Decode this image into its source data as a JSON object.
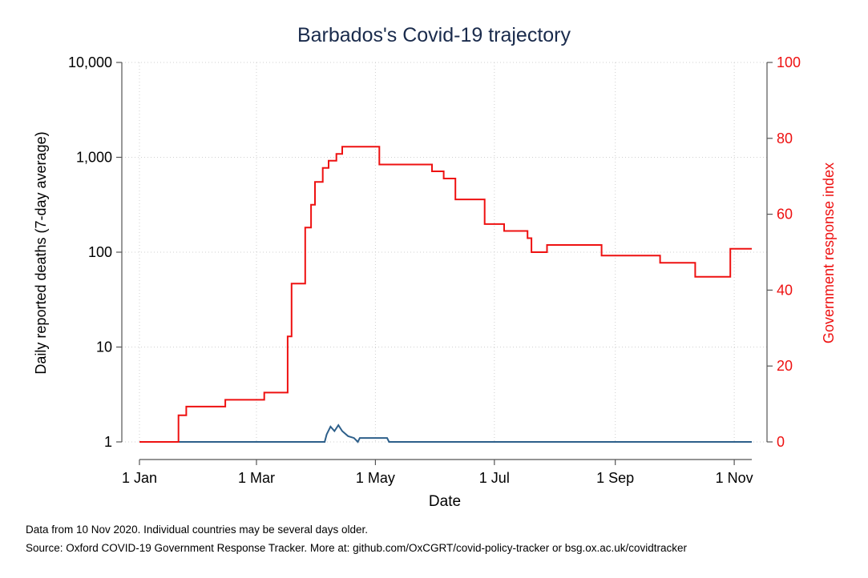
{
  "chart_data": {
    "type": "line",
    "title": "Barbados's Covid-19 trajectory",
    "xlabel": "Date",
    "ylabel_left": "Daily reported deaths (7-day average)",
    "ylabel_right": "Government response index",
    "x_ticks": [
      "1 Jan",
      "1 Mar",
      "1 May",
      "1 Jul",
      "1 Sep",
      "1 Nov"
    ],
    "x_tick_dates": [
      "2020-01-01",
      "2020-03-01",
      "2020-05-01",
      "2020-07-01",
      "2020-09-01",
      "2020-11-01"
    ],
    "x_range": [
      "2020-01-01",
      "2020-11-10"
    ],
    "y_left": {
      "scale": "log",
      "range": [
        1,
        10000
      ],
      "ticks": [
        1,
        10,
        100,
        1000,
        10000
      ],
      "tick_labels": [
        "1",
        "10",
        "100",
        "1,000",
        "10,000"
      ]
    },
    "y_right": {
      "scale": "linear",
      "range": [
        0,
        100
      ],
      "ticks": [
        0,
        20,
        40,
        60,
        80,
        100
      ],
      "tick_labels": [
        "0",
        "20",
        "40",
        "60",
        "80",
        "100"
      ]
    },
    "grid": true,
    "series": [
      {
        "axis": "left",
        "color": "#2d5f8a",
        "points": [
          [
            "2020-01-01",
            1
          ],
          [
            "2020-04-05",
            1
          ],
          [
            "2020-04-06",
            1.2
          ],
          [
            "2020-04-08",
            1.45
          ],
          [
            "2020-04-10",
            1.3
          ],
          [
            "2020-04-12",
            1.5
          ],
          [
            "2020-04-14",
            1.3
          ],
          [
            "2020-04-17",
            1.15
          ],
          [
            "2020-04-20",
            1.1
          ],
          [
            "2020-04-22",
            1.0
          ],
          [
            "2020-04-23",
            1.1
          ],
          [
            "2020-05-07",
            1.1
          ],
          [
            "2020-05-08",
            1
          ],
          [
            "2020-11-10",
            1
          ]
        ]
      },
      {
        "axis": "right",
        "color": "#ee1111",
        "step": true,
        "points": [
          [
            "2020-01-01",
            0
          ],
          [
            "2020-01-21",
            7
          ],
          [
            "2020-01-25",
            9.3
          ],
          [
            "2020-02-14",
            11.1
          ],
          [
            "2020-03-05",
            13
          ],
          [
            "2020-03-17",
            27.8
          ],
          [
            "2020-03-19",
            41.7
          ],
          [
            "2020-03-26",
            56.5
          ],
          [
            "2020-03-29",
            62.5
          ],
          [
            "2020-03-31",
            68.5
          ],
          [
            "2020-04-04",
            72.2
          ],
          [
            "2020-04-07",
            74.1
          ],
          [
            "2020-04-11",
            75.9
          ],
          [
            "2020-04-14",
            77.8
          ],
          [
            "2020-04-28",
            77.8
          ],
          [
            "2020-05-03",
            73.1
          ],
          [
            "2020-05-30",
            71.3
          ],
          [
            "2020-06-05",
            69.4
          ],
          [
            "2020-06-11",
            63.9
          ],
          [
            "2020-06-26",
            57.4
          ],
          [
            "2020-07-06",
            55.6
          ],
          [
            "2020-07-18",
            53.7
          ],
          [
            "2020-07-20",
            50
          ],
          [
            "2020-07-28",
            51.9
          ],
          [
            "2020-08-25",
            49.1
          ],
          [
            "2020-09-24",
            47.2
          ],
          [
            "2020-10-12",
            43.5
          ],
          [
            "2020-10-30",
            50.9
          ],
          [
            "2020-11-10",
            50.9
          ]
        ]
      }
    ]
  },
  "notes": {
    "line1": "Data from 10 Nov 2020. Individual countries may be several days older.",
    "line2": "Source: Oxford COVID-19 Government Response Tracker. More at: github.com/OxCGRT/covid-policy-tracker or bsg.ox.ac.uk/covidtracker"
  }
}
